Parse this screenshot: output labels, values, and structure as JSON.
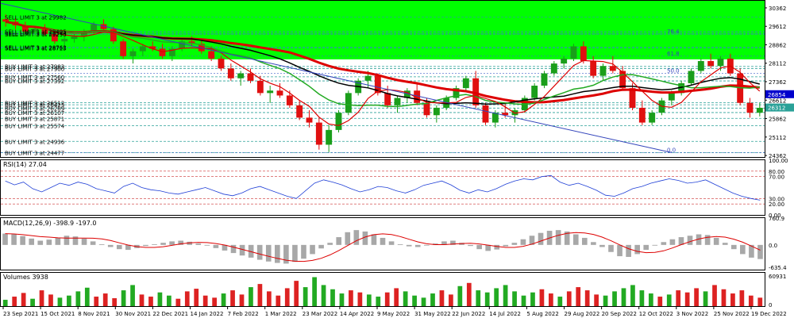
{
  "chart_data": [
    {
      "type": "candlestick",
      "panel": "price",
      "ylim": [
        24300,
        30650
      ],
      "y_ticks": [
        "30362",
        "29612",
        "28862",
        "28112",
        "27362",
        "26612",
        "25862",
        "25112",
        "24362"
      ],
      "price_badges": [
        {
          "value": "26854",
          "color": "#0000cc"
        },
        {
          "value": "26312",
          "color": "#2aa198"
        }
      ],
      "x_labels": [
        "23 Sep 2021",
        "15 Oct 2021",
        "8 Nov 2021",
        "30 Nov 2021",
        "22 Dec 2021",
        "14 Jan 2022",
        "7 Feb 2022",
        "1 Mar 2022",
        "23 Mar 2022",
        "14 Apr 2022",
        "9 May 2022",
        "31 May 2022",
        "22 Jun 2022",
        "14 Jul 2022",
        "5 Aug 2022",
        "29 Aug 2022",
        "20 Sep 2022",
        "12 Oct 2022",
        "3 Nov 2022",
        "25 Nov 2022",
        "19 Dec 2022"
      ],
      "order_labels": [
        {
          "text": "SELL LIMIT 3 at 29982",
          "y": 29982
        },
        {
          "text": "SELL LIMIT 3 at 29405",
          "y": 29405
        },
        {
          "text": "SELL LIMIT 3 at 29344",
          "y": 29344
        },
        {
          "text": "SELL LIMIT 3 at 29290",
          "y": 29290
        },
        {
          "text": "SELL LIMIT 3 at 28762",
          "y": 28762
        },
        {
          "text": "SELL LIMIT 3 at 28725",
          "y": 28725
        },
        {
          "text": "BUY LIMIT 3 at 27983",
          "y": 27983
        },
        {
          "text": "BUY LIMIT 3 at 27900",
          "y": 27900
        },
        {
          "text": "BUY LIMIT 3 at 27560",
          "y": 27560
        },
        {
          "text": "BUY LIMIT 3 at 27392",
          "y": 27392
        },
        {
          "text": "BUY LIMIT 3 at 26512",
          "y": 26512
        },
        {
          "text": "BUY LIMIT 3 at 26423",
          "y": 26423
        },
        {
          "text": "BUY LIMIT 3 at 26289",
          "y": 26289
        },
        {
          "text": "BUY LIMIT 3 at 26107",
          "y": 26107
        },
        {
          "text": "BUY LIMIT 3 at 25871",
          "y": 25871
        },
        {
          "text": "BUY LIMIT 3 at 25574",
          "y": 25574
        },
        {
          "text": "BUY LIMIT 3 at 24936",
          "y": 24936
        },
        {
          "text": "BUY LIMIT 3 at 24477",
          "y": 24477
        }
      ],
      "fib_labels": [
        {
          "text": "76.4",
          "y": 29300
        },
        {
          "text": "61.8",
          "y": 28400
        },
        {
          "text": "50.0",
          "y": 27700
        },
        {
          "text": "0.0",
          "y": 24480
        }
      ],
      "zone_color": "#00ff00",
      "zone_range": [
        28270,
        30650
      ],
      "candles_ohlc_sample": [
        [
          29900,
          30100,
          29600,
          29800
        ],
        [
          29800,
          29950,
          29500,
          29650
        ],
        [
          29650,
          29800,
          29300,
          29400
        ],
        [
          29400,
          29600,
          29200,
          29500
        ],
        [
          29500,
          29700,
          29250,
          29300
        ],
        [
          29300,
          29400,
          28900,
          29000
        ],
        [
          29000,
          29200,
          28800,
          29100
        ],
        [
          29100,
          29300,
          28950,
          29200
        ],
        [
          29200,
          29500,
          29000,
          29400
        ],
        [
          29400,
          29800,
          29300,
          29700
        ],
        [
          29700,
          29900,
          29400,
          29500
        ],
        [
          29500,
          29600,
          28900,
          29000
        ],
        [
          29000,
          29100,
          28300,
          28400
        ],
        [
          28400,
          28700,
          28100,
          28600
        ],
        [
          28600,
          28900,
          28400,
          28800
        ],
        [
          28800,
          29000,
          28600,
          28700
        ],
        [
          28700,
          28900,
          28300,
          28400
        ],
        [
          28400,
          28800,
          28200,
          28700
        ],
        [
          28700,
          29100,
          28600,
          29000
        ],
        [
          29000,
          29200,
          28800,
          28900
        ],
        [
          28900,
          29100,
          28500,
          28600
        ],
        [
          28600,
          28800,
          28200,
          28300
        ],
        [
          28300,
          28400,
          27800,
          27900
        ],
        [
          27900,
          28100,
          27400,
          27500
        ],
        [
          27500,
          27800,
          27200,
          27700
        ],
        [
          27700,
          27900,
          27300,
          27400
        ],
        [
          27400,
          27600,
          26800,
          26900
        ],
        [
          26900,
          27200,
          26500,
          27000
        ],
        [
          27000,
          27300,
          26700,
          26800
        ],
        [
          26800,
          27000,
          26300,
          26400
        ],
        [
          26400,
          26600,
          25800,
          25900
        ],
        [
          25900,
          26200,
          25500,
          25700
        ],
        [
          25700,
          25900,
          24600,
          24800
        ],
        [
          24800,
          25600,
          24500,
          25400
        ],
        [
          25400,
          26200,
          25300,
          26100
        ],
        [
          26100,
          27000,
          26000,
          26900
        ],
        [
          26900,
          27500,
          26800,
          27400
        ],
        [
          27400,
          27800,
          27100,
          27600
        ],
        [
          27600,
          27700,
          26800,
          26900
        ],
        [
          26900,
          27200,
          26300,
          26400
        ],
        [
          26400,
          26800,
          26100,
          26700
        ],
        [
          26700,
          27100,
          26500,
          27000
        ],
        [
          27000,
          27300,
          26400,
          26500
        ],
        [
          26500,
          26700,
          25900,
          26000
        ],
        [
          26000,
          26400,
          25700,
          26300
        ],
        [
          26300,
          26800,
          26200,
          26700
        ],
        [
          26700,
          27200,
          26600,
          27100
        ],
        [
          27100,
          27600,
          27000,
          27500
        ],
        [
          27500,
          27800,
          26300,
          26400
        ],
        [
          26400,
          26500,
          25600,
          25700
        ],
        [
          25700,
          26200,
          25500,
          26100
        ],
        [
          26100,
          26500,
          25900,
          26000
        ],
        [
          26000,
          26300,
          25700,
          26200
        ],
        [
          26200,
          26800,
          26100,
          26700
        ],
        [
          26700,
          27300,
          26600,
          27200
        ],
        [
          27200,
          27800,
          27100,
          27700
        ],
        [
          27700,
          28200,
          27600,
          28100
        ],
        [
          28100,
          28400,
          27900,
          28300
        ],
        [
          28300,
          28900,
          28200,
          28800
        ],
        [
          28800,
          29000,
          28100,
          28200
        ],
        [
          28200,
          28400,
          27500,
          27600
        ],
        [
          27600,
          28100,
          27400,
          28000
        ],
        [
          28000,
          28400,
          27700,
          27800
        ],
        [
          27800,
          28000,
          27000,
          27100
        ],
        [
          27100,
          27300,
          26200,
          26300
        ],
        [
          26300,
          26600,
          25600,
          25700
        ],
        [
          25700,
          26200,
          25600,
          26100
        ],
        [
          26100,
          26700,
          26000,
          26600
        ],
        [
          26600,
          27000,
          26400,
          26900
        ],
        [
          26900,
          27400,
          26800,
          27300
        ],
        [
          27300,
          27900,
          27200,
          27800
        ],
        [
          27800,
          28300,
          27700,
          28200
        ],
        [
          28200,
          28500,
          27900,
          28000
        ],
        [
          28000,
          28400,
          27800,
          28300
        ],
        [
          28300,
          28500,
          27600,
          27700
        ],
        [
          27700,
          27900,
          26400,
          26500
        ],
        [
          26500,
          26700,
          25900,
          26100
        ],
        [
          26100,
          26500,
          25950,
          26300
        ]
      ],
      "moving_averages": [
        {
          "color": "#dd0000",
          "role": "slow MA"
        },
        {
          "color": "#000000",
          "role": "MA"
        },
        {
          "color": "#22aa22",
          "role": "MA"
        },
        {
          "color": "#dd0000",
          "role": "fast MA"
        }
      ]
    },
    {
      "type": "line",
      "panel": "rsi",
      "title": "RSI(14) 27.04",
      "ylim": [
        0,
        100
      ],
      "y_ticks": [
        "100.00",
        "80.00",
        "70.00",
        "30.00",
        "20.00",
        "0.00"
      ],
      "levels": [
        80,
        70,
        30,
        20
      ],
      "values": [
        62,
        55,
        60,
        48,
        42,
        50,
        58,
        54,
        60,
        56,
        48,
        44,
        40,
        52,
        58,
        50,
        46,
        44,
        40,
        38,
        42,
        46,
        50,
        44,
        38,
        35,
        40,
        48,
        52,
        46,
        40,
        34,
        30,
        44,
        58,
        64,
        60,
        55,
        48,
        42,
        46,
        52,
        50,
        44,
        40,
        46,
        54,
        58,
        62,
        55,
        45,
        40,
        46,
        42,
        48,
        56,
        62,
        66,
        64,
        70,
        72,
        60,
        54,
        58,
        52,
        45,
        36,
        34,
        40,
        48,
        52,
        58,
        62,
        66,
        63,
        58,
        60,
        64,
        56,
        48,
        40,
        34,
        30,
        27
      ]
    },
    {
      "type": "bar",
      "panel": "macd",
      "title": "MACD(12,26,9) -398.9 -197.0",
      "ylim": [
        -700,
        760
      ],
      "y_ticks": [
        "760.9",
        "0.0",
        "-635.4"
      ],
      "histogram": [
        320,
        300,
        250,
        180,
        120,
        150,
        210,
        260,
        240,
        180,
        100,
        20,
        -60,
        -120,
        -140,
        -90,
        -30,
        20,
        60,
        100,
        120,
        90,
        40,
        -20,
        -90,
        -160,
        -230,
        -300,
        -360,
        -420,
        -470,
        -510,
        -530,
        -480,
        -390,
        -260,
        -100,
        60,
        220,
        360,
        420,
        380,
        300,
        200,
        100,
        20,
        -40,
        -60,
        -20,
        40,
        100,
        120,
        60,
        -30,
        -120,
        -170,
        -130,
        -40,
        60,
        160,
        260,
        340,
        400,
        420,
        380,
        300,
        200,
        80,
        -60,
        -200,
        -320,
        -340,
        -260,
        -140,
        -20,
        80,
        160,
        220,
        260,
        300,
        280,
        200,
        60,
        -120,
        -260,
        -360,
        -400
      ]
    },
    {
      "type": "bar",
      "panel": "volume",
      "title": "Volumes 3938",
      "ylim": [
        0,
        60931
      ],
      "y_ticks": [
        "60931",
        "0"
      ],
      "values": [
        12,
        18,
        25,
        14,
        30,
        22,
        16,
        20,
        28,
        35,
        18,
        24,
        15,
        30,
        40,
        22,
        18,
        26,
        20,
        14,
        28,
        33,
        20,
        16,
        24,
        30,
        22,
        36,
        42,
        28,
        20,
        34,
        48,
        36,
        55,
        40,
        32,
        24,
        30,
        26,
        22,
        18,
        26,
        34,
        28,
        20,
        16,
        24,
        30,
        22,
        38,
        44,
        30,
        26,
        34,
        40,
        28,
        20,
        26,
        32,
        24,
        18,
        28,
        36,
        30,
        22,
        20,
        28,
        34,
        40,
        30,
        24,
        18,
        22,
        30,
        26,
        34,
        28,
        40,
        32,
        24,
        30,
        20,
        16
      ]
    }
  ]
}
